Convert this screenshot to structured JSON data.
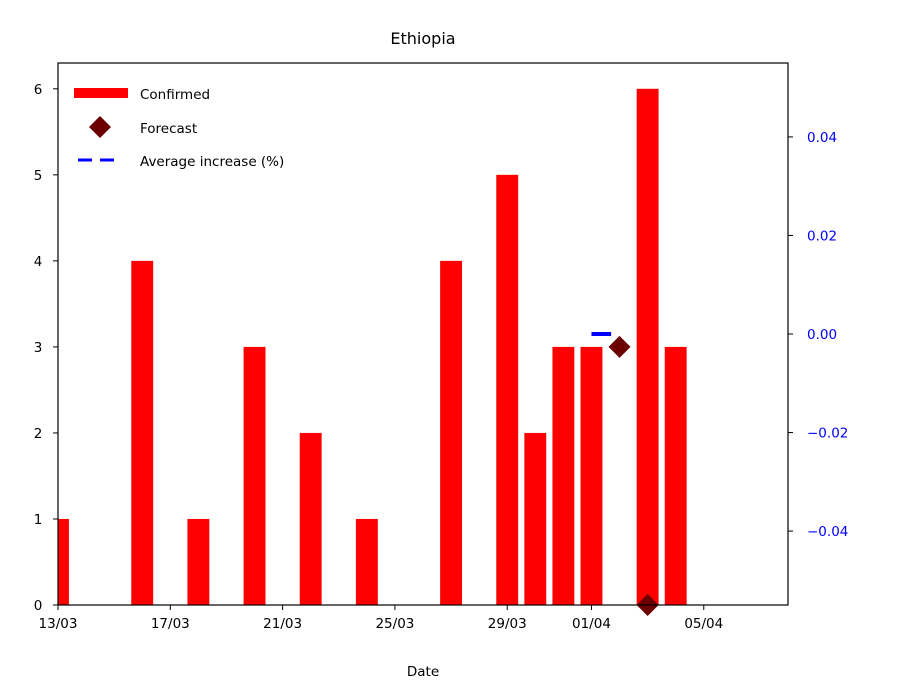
{
  "chart_data": {
    "type": "bar",
    "title": "Ethiopia",
    "xlabel": "Date",
    "ylabel": "",
    "dates": [
      "13/03",
      "14/03",
      "15/03",
      "16/03",
      "17/03",
      "18/03",
      "19/03",
      "20/03",
      "21/03",
      "22/03",
      "23/03",
      "24/03",
      "25/03",
      "26/03",
      "27/03",
      "28/03",
      "29/03",
      "30/03",
      "31/03",
      "01/04",
      "02/04",
      "03/04",
      "04/04",
      "05/04",
      "06/04",
      "07/04",
      "08/04"
    ],
    "xlim": [
      "13/03",
      "08/04"
    ],
    "x_tick_labels": [
      "13/03",
      "17/03",
      "21/03",
      "25/03",
      "29/03",
      "01/04",
      "05/04"
    ],
    "ylim": [
      0,
      6.3
    ],
    "y_ticks": [
      0,
      1,
      2,
      3,
      4,
      5,
      6
    ],
    "y2lim": [
      -0.055,
      0.055
    ],
    "y2_ticks": [
      -0.04,
      -0.02,
      0.0,
      0.02,
      0.04
    ],
    "y2_tick_labels": [
      "−0.04",
      "−0.02",
      "0.00",
      "0.02",
      "0.04"
    ],
    "series": [
      {
        "name": "Confirmed",
        "type": "bar",
        "color": "#ff0000",
        "points": [
          {
            "x": "13/03",
            "y": 1
          },
          {
            "x": "16/03",
            "y": 4
          },
          {
            "x": "18/03",
            "y": 1
          },
          {
            "x": "20/03",
            "y": 3
          },
          {
            "x": "22/03",
            "y": 2
          },
          {
            "x": "24/03",
            "y": 1
          },
          {
            "x": "27/03",
            "y": 4
          },
          {
            "x": "29/03",
            "y": 5
          },
          {
            "x": "30/03",
            "y": 2
          },
          {
            "x": "31/03",
            "y": 3
          },
          {
            "x": "01/04",
            "y": 3
          },
          {
            "x": "03/04",
            "y": 6
          },
          {
            "x": "04/04",
            "y": 3
          }
        ]
      },
      {
        "name": "Forecast",
        "type": "scatter",
        "marker": "diamond",
        "color": "#6b0000",
        "points": [
          {
            "x": "02/04",
            "y": 3
          },
          {
            "x": "03/04",
            "y": 0
          }
        ]
      },
      {
        "name": "Average increase (%)",
        "type": "line",
        "axis": "right",
        "style": "dashed",
        "color": "#0000ff",
        "points": [
          {
            "x": "01/04",
            "y": 0.0
          },
          {
            "x": "01/04",
            "y": 0.0
          }
        ]
      }
    ],
    "legend": {
      "placement": "top-left",
      "entries": [
        "Confirmed",
        "Forecast",
        "Average increase (%)"
      ]
    },
    "grid": false
  }
}
